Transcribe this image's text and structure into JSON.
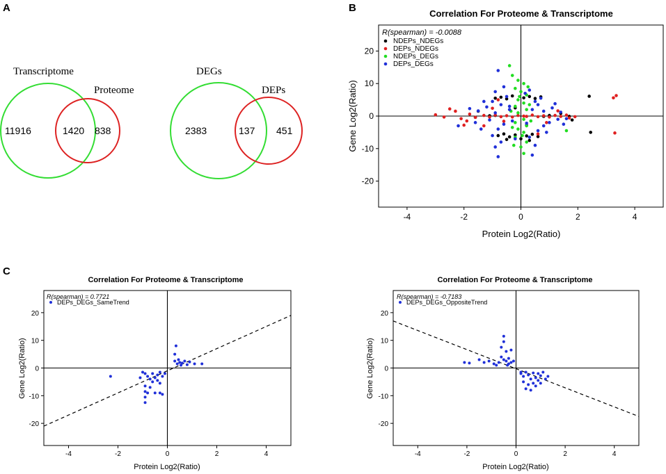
{
  "panels": {
    "a": "A",
    "b": "B",
    "c": "C"
  },
  "venns": [
    {
      "left_label": "Transcriptome",
      "right_label": "Proteome",
      "left_only": "11916",
      "overlap": "1420",
      "right_only": "838",
      "left_color": "#33dd33",
      "right_color": "#dd2222"
    },
    {
      "left_label": "DEGs",
      "right_label": "DEPs",
      "left_only": "2383",
      "overlap": "137",
      "right_only": "451",
      "left_color": "#33dd33",
      "right_color": "#dd2222"
    }
  ],
  "chart_data": [
    {
      "type": "scatter",
      "title": "Correlation For Proteome & Transcriptome",
      "xlabel": "Protein Log2(Ratio)",
      "ylabel": "Gene Log2(Ratio)",
      "xlim": [
        -5,
        5
      ],
      "ylim": [
        -28,
        28
      ],
      "xticks": [
        -4,
        -2,
        0,
        2,
        4
      ],
      "yticks": [
        -20,
        -10,
        0,
        10,
        20
      ],
      "annotation": "R(spearman) = -0.0088",
      "legend_position": "top-left",
      "series": [
        {
          "name": "NDEPs_NDEGs",
          "color": "#000000",
          "points": [
            [
              -0.9,
              5.5
            ],
            [
              -0.7,
              5.8
            ],
            [
              -0.5,
              5.3
            ],
            [
              -0.3,
              6.2
            ],
            [
              0.1,
              5.6
            ],
            [
              0.3,
              6.0
            ],
            [
              0.5,
              5.4
            ],
            [
              0.7,
              5.9
            ],
            [
              -0.8,
              -6.0
            ],
            [
              -0.6,
              -5.5
            ],
            [
              -0.4,
              -6.4
            ],
            [
              -0.2,
              -5.8
            ],
            [
              0.2,
              -6.1
            ],
            [
              0.4,
              -5.6
            ],
            [
              0.6,
              -6.3
            ],
            [
              -0.5,
              -7.2
            ],
            [
              0.0,
              -7.0
            ],
            [
              0.3,
              -7.5
            ],
            [
              -1.1,
              0.1
            ],
            [
              -0.9,
              0.2
            ],
            [
              0.8,
              -0.1
            ],
            [
              1.0,
              0.2
            ],
            [
              1.7,
              -0.1
            ],
            [
              2.4,
              6.1
            ],
            [
              2.45,
              -5.0
            ],
            [
              -1.5,
              1.5
            ],
            [
              1.8,
              -1.2
            ],
            [
              -0.2,
              2.5
            ],
            [
              0.2,
              -2.8
            ],
            [
              1.4,
              0.8
            ],
            [
              -1.6,
              -0.4
            ]
          ]
        },
        {
          "name": "DEPs_NDEGs",
          "color": "#e02020",
          "points": [
            [
              -3.0,
              0.4
            ],
            [
              -2.7,
              -0.3
            ],
            [
              -2.3,
              1.5
            ],
            [
              -2.1,
              -0.8
            ],
            [
              -1.8,
              0.6
            ],
            [
              -1.6,
              -0.4
            ],
            [
              -1.3,
              0.2
            ],
            [
              -1.1,
              -0.3
            ],
            [
              -0.9,
              0.3
            ],
            [
              -0.7,
              -0.2
            ],
            [
              -0.5,
              0.1
            ],
            [
              -0.3,
              -0.3
            ],
            [
              -0.1,
              0.2
            ],
            [
              0.2,
              -0.1
            ],
            [
              0.4,
              0.3
            ],
            [
              0.6,
              -0.2
            ],
            [
              0.8,
              0.1
            ],
            [
              1.0,
              -0.3
            ],
            [
              1.2,
              0.2
            ],
            [
              1.4,
              -0.1
            ],
            [
              1.6,
              0.3
            ],
            [
              1.9,
              -0.2
            ],
            [
              -2.5,
              2.2
            ],
            [
              -1.9,
              -1.5
            ],
            [
              -1.3,
              -3.0
            ],
            [
              1.7,
              -0.6
            ],
            [
              3.25,
              5.6
            ],
            [
              3.35,
              6.3
            ],
            [
              3.3,
              -5.2
            ],
            [
              -0.8,
              5.0
            ],
            [
              0.6,
              -5.5
            ],
            [
              -2.0,
              -2.8
            ],
            [
              1.3,
              1.6
            ],
            [
              0.9,
              -2.0
            ],
            [
              -1.0,
              2.4
            ],
            [
              0.1,
              0.0
            ],
            [
              -0.6,
              -1.6
            ]
          ]
        },
        {
          "name": "NDEPs_DEGs",
          "color": "#22dd22",
          "points": [
            [
              -0.4,
              15.5
            ],
            [
              -0.3,
              12.5
            ],
            [
              -0.1,
              11.0
            ],
            [
              0.1,
              10.0
            ],
            [
              -0.2,
              8.5
            ],
            [
              0.0,
              7.5
            ],
            [
              0.2,
              6.5
            ],
            [
              -0.1,
              5.0
            ],
            [
              0.1,
              4.0
            ],
            [
              -0.2,
              3.0
            ],
            [
              0.2,
              2.0
            ],
            [
              -0.1,
              1.0
            ],
            [
              0.1,
              -1.0
            ],
            [
              -0.2,
              -2.0
            ],
            [
              0.2,
              -3.0
            ],
            [
              -0.1,
              -4.0
            ],
            [
              0.1,
              -5.0
            ],
            [
              -0.2,
              -6.5
            ],
            [
              0.2,
              -8.0
            ],
            [
              0.0,
              -9.5
            ],
            [
              0.1,
              -11.5
            ],
            [
              -0.05,
              6.0
            ],
            [
              0.05,
              -6.0
            ],
            [
              0.3,
              3.5
            ],
            [
              -0.3,
              -3.5
            ],
            [
              0.25,
              9.0
            ],
            [
              -0.25,
              -9.0
            ],
            [
              1.6,
              -4.5
            ],
            [
              0.35,
              -1.5
            ],
            [
              -0.35,
              1.5
            ]
          ]
        },
        {
          "name": "DEPs_DEGs",
          "color": "#2030d8",
          "points": [
            [
              -0.8,
              14.0
            ],
            [
              -0.6,
              9.0
            ],
            [
              -0.9,
              7.5
            ],
            [
              -0.5,
              6.0
            ],
            [
              -1.0,
              4.5
            ],
            [
              -0.7,
              3.5
            ],
            [
              -1.2,
              2.8
            ],
            [
              -0.4,
              2.0
            ],
            [
              -1.5,
              1.6
            ],
            [
              -1.8,
              2.3
            ],
            [
              -0.9,
              1.0
            ],
            [
              -2.2,
              -3.0
            ],
            [
              -1.6,
              -2.0
            ],
            [
              -1.1,
              -1.2
            ],
            [
              -0.6,
              -2.5
            ],
            [
              -0.8,
              -4.0
            ],
            [
              -1.0,
              -6.0
            ],
            [
              -0.7,
              -8.0
            ],
            [
              -0.9,
              -9.5
            ],
            [
              -0.8,
              -12.5
            ],
            [
              0.4,
              -12.0
            ],
            [
              0.5,
              -9.0
            ],
            [
              0.3,
              -6.5
            ],
            [
              0.6,
              -4.5
            ],
            [
              0.8,
              -3.0
            ],
            [
              1.0,
              -2.0
            ],
            [
              1.3,
              -1.0
            ],
            [
              1.5,
              -2.5
            ],
            [
              0.4,
              2.0
            ],
            [
              0.6,
              3.5
            ],
            [
              0.8,
              1.5
            ],
            [
              1.1,
              2.5
            ],
            [
              1.4,
              1.2
            ],
            [
              0.7,
              5.5
            ],
            [
              0.3,
              8.0
            ],
            [
              0.5,
              4.5
            ],
            [
              -0.3,
              -1.5
            ],
            [
              0.2,
              -2.2
            ],
            [
              -0.4,
              3.0
            ],
            [
              0.9,
              -5.0
            ],
            [
              -1.3,
              4.5
            ],
            [
              1.2,
              3.8
            ],
            [
              -0.2,
              -7.0
            ],
            [
              0.15,
              7.0
            ],
            [
              -1.4,
              -4.0
            ],
            [
              1.6,
              -0.8
            ]
          ]
        }
      ]
    },
    {
      "type": "scatter",
      "title": "Correlation For Proteome & Transcriptome",
      "xlabel": "Protein Log2(Ratio)",
      "ylabel": "Gene Log2(Ratio)",
      "xlim": [
        -5,
        5
      ],
      "ylim": [
        -28,
        28
      ],
      "xticks": [
        -4,
        -2,
        0,
        2,
        4
      ],
      "yticks": [
        -20,
        -10,
        0,
        10,
        20
      ],
      "annotation": "R(spearman) = 0.7721",
      "legend_position": "top-left",
      "trend_line": {
        "x": [
          -5,
          5
        ],
        "y": [
          -21,
          19
        ]
      },
      "series": [
        {
          "name": "DEPs_DEGs_SameTrend",
          "color": "#2030d8",
          "points": [
            [
              0.35,
              8.0
            ],
            [
              0.3,
              5.0
            ],
            [
              0.3,
              2.5
            ],
            [
              0.4,
              1.5
            ],
            [
              0.5,
              2.0
            ],
            [
              0.6,
              1.8
            ],
            [
              0.7,
              2.5
            ],
            [
              0.8,
              1.2
            ],
            [
              0.9,
              2.2
            ],
            [
              1.1,
              1.5
            ],
            [
              1.4,
              1.5
            ],
            [
              0.45,
              3.0
            ],
            [
              0.55,
              1.0
            ],
            [
              -2.3,
              -3.0
            ],
            [
              -1.0,
              -1.5
            ],
            [
              -0.9,
              -2.0
            ],
            [
              -0.8,
              -3.0
            ],
            [
              -0.7,
              -4.0
            ],
            [
              -0.6,
              -2.0
            ],
            [
              -0.5,
              -3.5
            ],
            [
              -0.4,
              -2.5
            ],
            [
              -0.3,
              -5.5
            ],
            [
              -0.2,
              -3.0
            ],
            [
              -0.1,
              -2.0
            ],
            [
              -0.3,
              -1.5
            ],
            [
              -0.9,
              -6.5
            ],
            [
              -0.7,
              -7.0
            ],
            [
              -0.9,
              -8.5
            ],
            [
              -0.8,
              -9.0
            ],
            [
              -0.9,
              -10.5
            ],
            [
              -0.9,
              -12.5
            ],
            [
              -0.5,
              -9.0
            ],
            [
              -0.3,
              -9.0
            ],
            [
              -0.2,
              -9.5
            ],
            [
              -0.6,
              -5.0
            ],
            [
              -0.4,
              -4.5
            ],
            [
              -1.1,
              -3.5
            ]
          ]
        }
      ]
    },
    {
      "type": "scatter",
      "title": "Correlation For Proteome & Transcriptome",
      "xlabel": "Protein Log2(Ratio)",
      "ylabel": "Gene Log2(Ratio)",
      "xlim": [
        -5,
        5
      ],
      "ylim": [
        -28,
        28
      ],
      "xticks": [
        -4,
        -2,
        0,
        2,
        4
      ],
      "yticks": [
        -20,
        -10,
        0,
        10,
        20
      ],
      "annotation": "R(spearman) = -0.7183",
      "legend_position": "top-left",
      "trend_line": {
        "x": [
          -5,
          5
        ],
        "y": [
          17,
          -17.5
        ]
      },
      "series": [
        {
          "name": "DEPs_DEGs_OppositeTrend",
          "color": "#2030d8",
          "points": [
            [
              -2.1,
              2.0
            ],
            [
              -1.9,
              1.8
            ],
            [
              -1.5,
              3.0
            ],
            [
              -1.3,
              2.0
            ],
            [
              -1.1,
              2.5
            ],
            [
              -0.9,
              1.5
            ],
            [
              -0.8,
              1.0
            ],
            [
              -0.7,
              2.0
            ],
            [
              -0.6,
              4.0
            ],
            [
              -0.5,
              3.0
            ],
            [
              -0.5,
              9.5
            ],
            [
              -0.5,
              11.5
            ],
            [
              -0.4,
              6.0
            ],
            [
              -0.4,
              2.5
            ],
            [
              -0.3,
              3.5
            ],
            [
              -0.3,
              1.5
            ],
            [
              -0.2,
              2.0
            ],
            [
              -0.2,
              6.5
            ],
            [
              -0.1,
              2.5
            ],
            [
              -0.6,
              7.5
            ],
            [
              -0.35,
              1.0
            ],
            [
              0.2,
              -2.0
            ],
            [
              0.3,
              -3.0
            ],
            [
              0.4,
              -1.5
            ],
            [
              0.5,
              -2.5
            ],
            [
              0.6,
              -4.0
            ],
            [
              0.7,
              -1.8
            ],
            [
              0.8,
              -3.5
            ],
            [
              0.9,
              -2.0
            ],
            [
              1.0,
              -2.8
            ],
            [
              1.1,
              -1.5
            ],
            [
              1.3,
              -3.0
            ],
            [
              0.3,
              -5.0
            ],
            [
              0.4,
              -7.5
            ],
            [
              0.6,
              -8.0
            ],
            [
              0.5,
              -6.0
            ],
            [
              0.8,
              -6.5
            ],
            [
              1.0,
              -5.5
            ],
            [
              1.2,
              -4.0
            ],
            [
              0.7,
              -5.5
            ],
            [
              0.2,
              -1.5
            ],
            [
              0.9,
              -4.5
            ]
          ]
        }
      ]
    }
  ]
}
